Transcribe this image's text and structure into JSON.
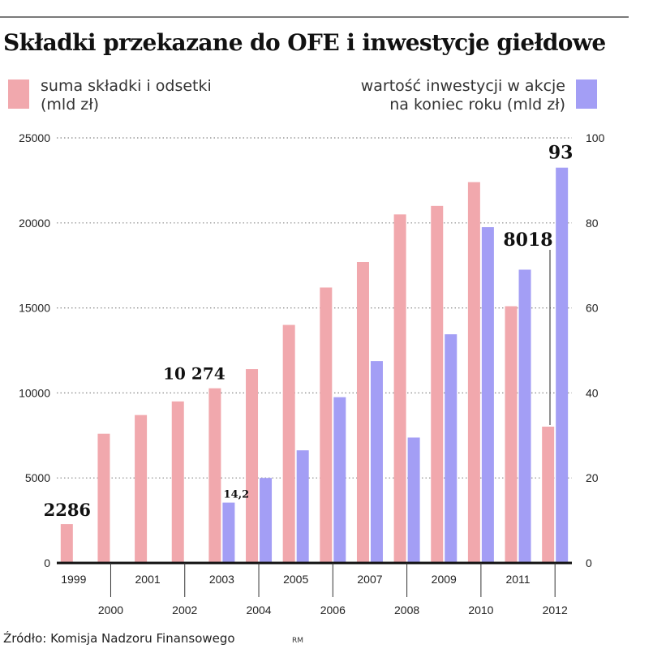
{
  "header": {
    "title": "Składki przekazane do OFE i inwestycje giełdowe"
  },
  "legend": {
    "left": {
      "line1": "suma składki i odsetki",
      "line2": "(mld zł)",
      "color": "#f1a8ad"
    },
    "right": {
      "line1": "wartość inwestycji w akcje",
      "line2": "na koniec roku (mld zł)",
      "color": "#a39ef5"
    }
  },
  "footer": {
    "source": "Źródło: Komisja Nadzoru Finansowego",
    "author": "RM"
  },
  "chart_data": {
    "type": "bar",
    "categories": [
      "1999",
      "2000",
      "2001",
      "2002",
      "2003",
      "2004",
      "2005",
      "2006",
      "2007",
      "2008",
      "2009",
      "2010",
      "2011",
      "2012"
    ],
    "series": [
      {
        "name": "suma składki i odsetki (mld zł)",
        "axis": "left",
        "color": "#f1a8ad",
        "values": [
          2286,
          7600,
          8700,
          9500,
          10274,
          11400,
          14000,
          16200,
          17700,
          20500,
          21000,
          22400,
          15100,
          8018
        ]
      },
      {
        "name": "wartość inwestycji w akcje na koniec roku (mld zł)",
        "axis": "right",
        "color": "#a39ef5",
        "values": [
          null,
          null,
          null,
          null,
          14.2,
          20,
          26.5,
          39,
          47.5,
          29.5,
          53.8,
          79,
          69,
          93
        ]
      }
    ],
    "left_axis": {
      "ticks": [
        "0",
        "5000",
        "10000",
        "15000",
        "20000",
        "25000"
      ],
      "ylim": [
        0,
        25000
      ]
    },
    "right_axis": {
      "ticks": [
        "0",
        "20",
        "40",
        "60",
        "80",
        "100"
      ],
      "ylim": [
        0,
        100
      ]
    },
    "x_ticks_top": [
      "1999",
      "2001",
      "2003",
      "2005",
      "2007",
      "2009",
      "2011"
    ],
    "x_ticks_bottom": [
      "2000",
      "2002",
      "2004",
      "2006",
      "2008",
      "2010",
      "2012"
    ],
    "annotations": [
      {
        "text": "2286",
        "year": "1999",
        "series": 0
      },
      {
        "text": "10 274",
        "year": "2003",
        "series": 0
      },
      {
        "text": "14,2",
        "year": "2003",
        "series": 1
      },
      {
        "text": "8018",
        "year": "2012",
        "series": 0
      },
      {
        "text": "93",
        "year": "2012",
        "series": 1
      }
    ],
    "grid": "dotted horizontal"
  }
}
